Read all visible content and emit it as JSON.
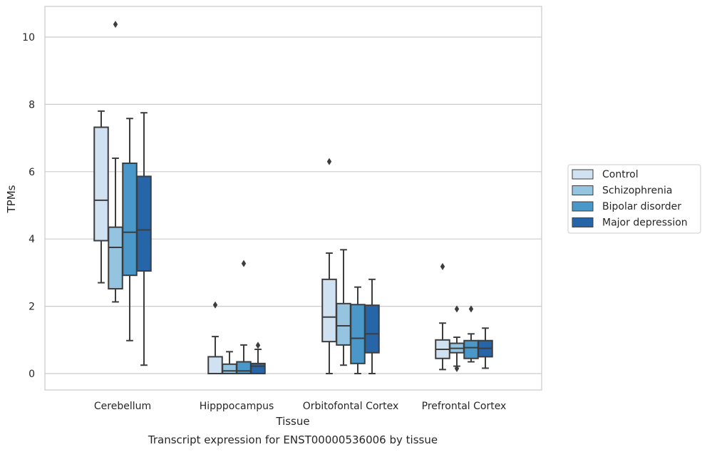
{
  "chart_data": {
    "type": "box",
    "title": "",
    "caption": "Transcript expression for ENST00000536006 by tissue",
    "xlabel": "Tissue",
    "ylabel": "TPMs",
    "ylim": [
      -0.5,
      10.9
    ],
    "yticks": [
      0,
      2,
      4,
      6,
      8,
      10
    ],
    "grid": true,
    "legend_position": "right",
    "categories": [
      "Cerebellum",
      "Hipppocampus",
      "Orbitofontal Cortex",
      "Prefrontal Cortex"
    ],
    "series": [
      {
        "name": "Control",
        "color": "#d0e1f2",
        "boxes": [
          {
            "whislo": 2.7,
            "q1": 3.95,
            "med": 5.15,
            "q3": 7.32,
            "whishi": 7.8,
            "fliers": []
          },
          {
            "whislo": 0.0,
            "q1": 0.0,
            "med": 0.0,
            "q3": 0.5,
            "whishi": 1.1,
            "fliers": [
              2.04
            ]
          },
          {
            "whislo": 0.0,
            "q1": 0.95,
            "med": 1.68,
            "q3": 2.8,
            "whishi": 3.58,
            "fliers": [
              6.3
            ]
          },
          {
            "whislo": 0.12,
            "q1": 0.45,
            "med": 0.72,
            "q3": 1.0,
            "whishi": 1.5,
            "fliers": [
              3.18
            ]
          }
        ]
      },
      {
        "name": "Schizophrenia",
        "color": "#94c4df",
        "boxes": [
          {
            "whislo": 2.13,
            "q1": 2.52,
            "med": 3.75,
            "q3": 4.35,
            "whishi": 6.4,
            "fliers": [
              10.38
            ]
          },
          {
            "whislo": 0.0,
            "q1": 0.0,
            "med": 0.08,
            "q3": 0.28,
            "whishi": 0.65,
            "fliers": []
          },
          {
            "whislo": 0.25,
            "q1": 0.85,
            "med": 1.42,
            "q3": 2.08,
            "whishi": 3.68,
            "fliers": []
          },
          {
            "whislo": 0.22,
            "q1": 0.62,
            "med": 0.75,
            "q3": 0.9,
            "whishi": 1.08,
            "fliers": [
              1.92,
              0.15
            ]
          }
        ]
      },
      {
        "name": "Bipolar disorder",
        "color": "#4a98c9",
        "boxes": [
          {
            "whislo": 0.98,
            "q1": 2.92,
            "med": 4.2,
            "q3": 6.25,
            "whishi": 7.58,
            "fliers": []
          },
          {
            "whislo": 0.0,
            "q1": 0.0,
            "med": 0.08,
            "q3": 0.35,
            "whishi": 0.85,
            "fliers": [
              3.27
            ]
          },
          {
            "whislo": 0.0,
            "q1": 0.3,
            "med": 1.05,
            "q3": 2.05,
            "whishi": 2.57,
            "fliers": []
          },
          {
            "whislo": 0.35,
            "q1": 0.45,
            "med": 0.77,
            "q3": 0.98,
            "whishi": 1.18,
            "fliers": [
              1.92
            ]
          }
        ]
      },
      {
        "name": "Major depression",
        "color": "#2666a8",
        "boxes": [
          {
            "whislo": 0.25,
            "q1": 3.05,
            "med": 4.27,
            "q3": 5.86,
            "whishi": 7.75,
            "fliers": []
          },
          {
            "whislo": 0.0,
            "q1": 0.0,
            "med": 0.22,
            "q3": 0.3,
            "whishi": 0.72,
            "fliers": [
              0.84
            ]
          },
          {
            "whislo": 0.0,
            "q1": 0.62,
            "med": 1.18,
            "q3": 2.03,
            "whishi": 2.8,
            "fliers": []
          },
          {
            "whislo": 0.16,
            "q1": 0.5,
            "med": 0.75,
            "q3": 0.98,
            "whishi": 1.35,
            "fliers": []
          }
        ]
      }
    ]
  }
}
